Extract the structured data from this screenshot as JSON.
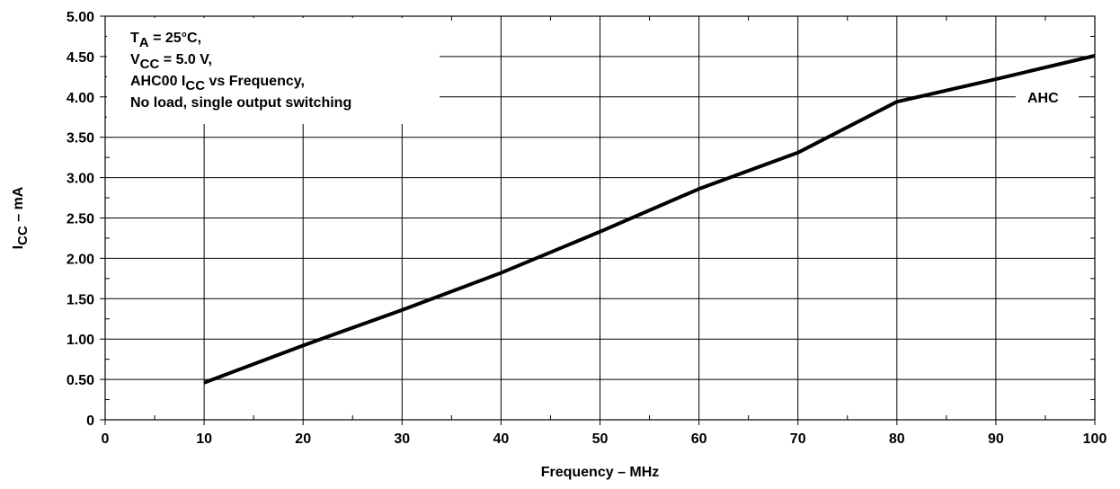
{
  "chart_data": {
    "type": "line",
    "title": "",
    "xlabel": "Frequency – MHz",
    "ylabel": {
      "prefix": "I",
      "sub": "CC",
      "suffix": " – mA"
    },
    "xlim": [
      0,
      100
    ],
    "ylim": [
      0,
      5
    ],
    "x_ticks": [
      "0",
      "10",
      "20",
      "30",
      "40",
      "50",
      "60",
      "70",
      "80",
      "90",
      "100"
    ],
    "y_ticks": [
      "0",
      "0.50",
      "1.00",
      "1.50",
      "2.00",
      "2.50",
      "3.00",
      "3.50",
      "4.00",
      "4.50",
      "5.00"
    ],
    "grid": true,
    "series": [
      {
        "name": "AHC",
        "color": "#000000",
        "x": [
          10,
          20,
          30,
          40,
          50,
          60,
          70,
          80,
          90,
          100
        ],
        "y": [
          0.46,
          0.92,
          1.36,
          1.82,
          2.33,
          2.86,
          3.31,
          3.94,
          4.22,
          4.51
        ]
      }
    ],
    "annotation_lines": [
      {
        "pre": "T",
        "sub": "A",
        "post": " = 25°C,"
      },
      {
        "pre": "V",
        "sub": "CC",
        "post": " = 5.0 V,"
      },
      {
        "pre": "AHC00 I",
        "sub": "CC",
        "post": " vs Frequency,"
      },
      {
        "pre": "No load, single output switching",
        "sub": "",
        "post": ""
      }
    ],
    "series_label": "AHC"
  }
}
